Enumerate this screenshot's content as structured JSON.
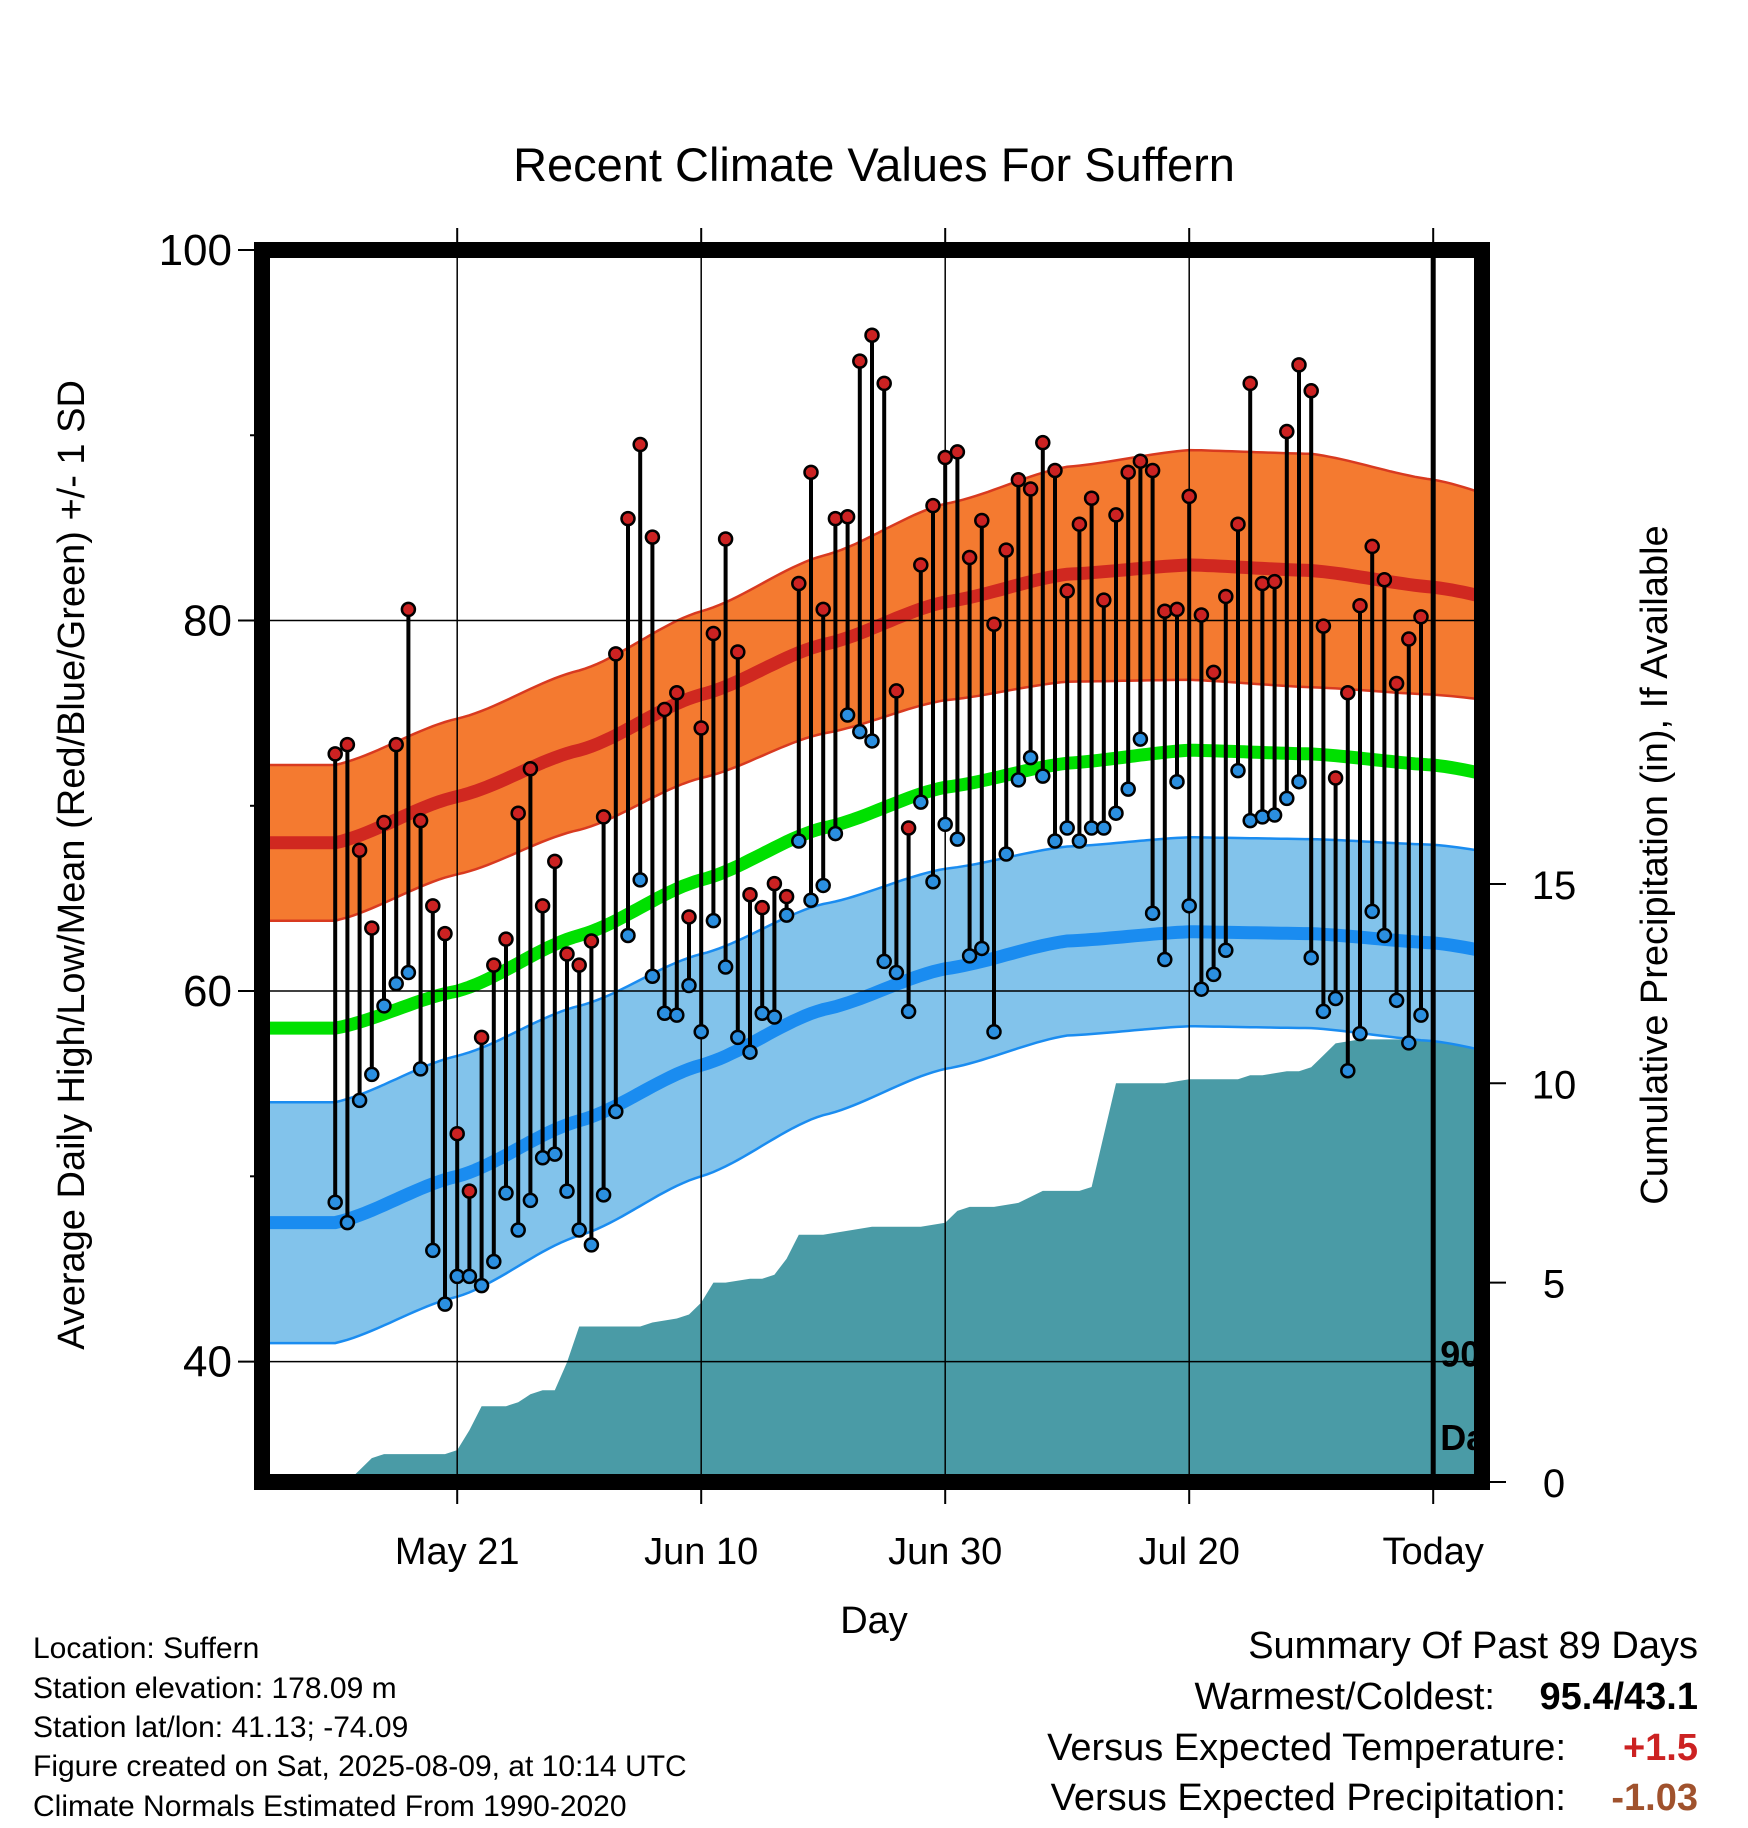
{
  "chart_data": {
    "type": "line",
    "title": "Recent Climate Values For Suffern",
    "xlabel": "Day",
    "ylabel_left": "Average Daily High/Low/Mean (Red/Blue/Green) +/- 1 SD",
    "ylabel_right": "Cumulative Precipitation (in), If Available",
    "xlim": [
      -16,
      84
    ],
    "ylim": [
      33.5,
      100
    ],
    "y2lim": [
      0,
      30.9
    ],
    "grid": true,
    "x_ticks": [
      {
        "x": 0,
        "label": "May 21"
      },
      {
        "x": 20,
        "label": "Jun 10"
      },
      {
        "x": 40,
        "label": "Jun 30"
      },
      {
        "x": 60,
        "label": "Jul 20"
      },
      {
        "x": 80,
        "label": "Today"
      }
    ],
    "y_ticks": [
      {
        "y": 40,
        "label": "40"
      },
      {
        "y": 60,
        "label": "60"
      },
      {
        "y": 80,
        "label": "80"
      },
      {
        "y": 100,
        "label": "100"
      }
    ],
    "y2_ticks": [
      {
        "y": 0,
        "label": "0"
      },
      {
        "y": 5,
        "label": "5"
      },
      {
        "y": 10,
        "label": "10"
      },
      {
        "y": 15,
        "label": "15"
      }
    ],
    "today_marker": {
      "x": 80,
      "label_line1": "90",
      "label_line2": "Days"
    },
    "colors": {
      "high_band": "#f47a30",
      "high_band_edge": "#d83a20",
      "normal_high": "#d02820",
      "normal_mean": "#00e000",
      "low_band": "#82c3eb",
      "low_band_edge": "#1a8cf0",
      "normal_low": "#1a8cf0",
      "precip": "#4a9ba6",
      "high_dot": "#cc2222",
      "low_dot": "#2b8fe0",
      "positive_anomaly": "#cc2222",
      "negative_anomaly": "#a0522d"
    },
    "normals": {
      "x": [
        -10,
        0,
        10,
        20,
        30,
        40,
        50,
        60,
        70,
        80,
        90
      ],
      "normal_high": [
        68,
        70.5,
        73,
        76,
        78.7,
        81,
        82.5,
        83,
        82.7,
        81.8,
        80.5
      ],
      "high_sd": [
        4.2,
        4.2,
        4.3,
        4.5,
        4.8,
        5.3,
        5.8,
        6.2,
        6.3,
        5.8,
        5.2
      ],
      "normal_mean": [
        58,
        60,
        63,
        66,
        68.8,
        71,
        72.3,
        73,
        72.8,
        72.2,
        71
      ],
      "normal_low": [
        47.5,
        50,
        53,
        56,
        59,
        61.2,
        62.7,
        63.2,
        63.1,
        62.6,
        61.5
      ],
      "low_sd": [
        6.5,
        6.5,
        6.2,
        6,
        5.7,
        5.4,
        5.1,
        5.1,
        5.1,
        5.3,
        5.5
      ]
    },
    "series": [
      {
        "name": "High",
        "x": [
          -10,
          -9,
          -8,
          -7,
          -6,
          -5,
          -4,
          -3,
          -2,
          -1,
          0,
          1,
          2,
          3,
          4,
          5,
          6,
          7,
          8,
          9,
          10,
          11,
          12,
          13,
          14,
          15,
          16,
          17,
          18,
          19,
          20,
          21,
          22,
          23,
          24,
          25,
          26,
          27,
          28,
          29,
          30,
          31,
          32,
          33,
          34,
          35,
          36,
          37,
          38,
          39,
          40,
          41,
          42,
          43,
          44,
          45,
          46,
          47,
          48,
          49,
          50,
          51,
          52,
          53,
          54,
          55,
          56,
          57,
          58,
          59,
          60,
          61,
          62,
          63,
          64,
          65,
          66,
          67,
          68,
          69,
          70,
          71,
          72,
          73,
          74,
          75,
          76,
          77,
          78,
          79
        ],
        "values": [
          72.8,
          73.3,
          67.6,
          63.4,
          69.1,
          73.3,
          80.6,
          69.2,
          64.6,
          63.1,
          52.3,
          49.2,
          57.5,
          61.4,
          62.8,
          69.6,
          72.0,
          64.6,
          67.0,
          62.0,
          61.4,
          62.7,
          69.4,
          78.2,
          85.5,
          89.5,
          84.5,
          75.2,
          76.1,
          64.0,
          74.2,
          79.3,
          84.4,
          78.3,
          65.2,
          64.5,
          65.8,
          65.1,
          82.0,
          88.0,
          80.6,
          85.5,
          85.6,
          94.0,
          95.4,
          92.8,
          76.2,
          68.8,
          83.0,
          86.2,
          88.8,
          89.1,
          83.4,
          85.4,
          79.8,
          83.8,
          87.6,
          87.1,
          89.6,
          88.1,
          81.6,
          85.2,
          86.6,
          81.1,
          85.7,
          88.0,
          88.6,
          88.1,
          80.5,
          80.6,
          86.7,
          80.3,
          77.2,
          81.3,
          85.2,
          92.8,
          82.0,
          82.1,
          90.2,
          93.8,
          92.4,
          79.7,
          71.5,
          76.1,
          80.8,
          84.0,
          82.2,
          76.6,
          79.0,
          80.2
        ]
      },
      {
        "name": "Low",
        "x": [
          -10,
          -9,
          -8,
          -7,
          -6,
          -5,
          -4,
          -3,
          -2,
          -1,
          0,
          1,
          2,
          3,
          4,
          5,
          6,
          7,
          8,
          9,
          10,
          11,
          12,
          13,
          14,
          15,
          16,
          17,
          18,
          19,
          20,
          21,
          22,
          23,
          24,
          25,
          26,
          27,
          28,
          29,
          30,
          31,
          32,
          33,
          34,
          35,
          36,
          37,
          38,
          39,
          40,
          41,
          42,
          43,
          44,
          45,
          46,
          47,
          48,
          49,
          50,
          51,
          52,
          53,
          54,
          55,
          56,
          57,
          58,
          59,
          60,
          61,
          62,
          63,
          64,
          65,
          66,
          67,
          68,
          69,
          70,
          71,
          72,
          73,
          74,
          75,
          76,
          77,
          78,
          79
        ],
        "values": [
          48.6,
          47.5,
          54.1,
          55.5,
          59.2,
          60.4,
          61.0,
          55.8,
          46.0,
          43.1,
          44.6,
          44.6,
          44.1,
          45.4,
          49.1,
          47.1,
          48.7,
          51.0,
          51.2,
          49.2,
          47.1,
          46.3,
          49.0,
          53.5,
          63.0,
          66.0,
          60.8,
          58.8,
          58.7,
          60.3,
          57.8,
          63.8,
          61.3,
          57.5,
          56.7,
          58.8,
          58.6,
          64.1,
          68.1,
          64.9,
          65.7,
          68.5,
          74.9,
          74.0,
          73.5,
          61.6,
          61.0,
          58.9,
          70.2,
          65.9,
          69.0,
          68.2,
          61.9,
          62.3,
          57.8,
          67.4,
          71.4,
          72.6,
          71.6,
          68.1,
          68.8,
          68.1,
          68.8,
          68.8,
          69.6,
          70.9,
          73.6,
          64.2,
          61.7,
          71.3,
          64.6,
          60.1,
          60.9,
          62.2,
          71.9,
          69.2,
          69.4,
          69.5,
          70.4,
          71.3,
          61.8,
          58.9,
          59.6,
          55.7,
          57.7,
          64.3,
          63.0,
          59.5,
          57.2,
          58.7
        ]
      }
    ],
    "precip": {
      "x": [
        -16,
        -9,
        -7,
        -6,
        -2,
        -1,
        0,
        1,
        2,
        4,
        5,
        6,
        7,
        8,
        9,
        10,
        11,
        12,
        14,
        15,
        16,
        18,
        19,
        20,
        21,
        22,
        24,
        25,
        26,
        27,
        28,
        29,
        30,
        32,
        34,
        36,
        38,
        40,
        41,
        42,
        44,
        46,
        48,
        50,
        51,
        52,
        54,
        56,
        58,
        60,
        62,
        64,
        65,
        66,
        68,
        69,
        70,
        71,
        72,
        74,
        76,
        78,
        80,
        84
      ],
      "values": [
        0,
        0,
        0.6,
        0.7,
        0.7,
        0.7,
        0.8,
        1.3,
        1.9,
        1.9,
        2.0,
        2.2,
        2.3,
        2.3,
        3.0,
        3.9,
        3.9,
        3.9,
        3.9,
        3.9,
        4.0,
        4.1,
        4.2,
        4.5,
        5.0,
        5.0,
        5.1,
        5.1,
        5.2,
        5.6,
        6.2,
        6.2,
        6.2,
        6.3,
        6.4,
        6.4,
        6.4,
        6.5,
        6.8,
        6.9,
        6.9,
        7.0,
        7.3,
        7.3,
        7.3,
        7.4,
        10.0,
        10.0,
        10.0,
        10.1,
        10.1,
        10.1,
        10.2,
        10.2,
        10.3,
        10.3,
        10.4,
        10.7,
        11.0,
        11.1,
        11.1,
        11.1,
        11.1,
        11.1
      ]
    }
  },
  "info": {
    "location": "Location: Suffern",
    "elevation": "Station elevation: 178.09 m",
    "latlon": "Station lat/lon: 41.13; -74.09",
    "created": "Figure created on Sat, 2025-08-09, at 10:14 UTC",
    "normals_source": "Climate Normals Estimated From 1990-2020"
  },
  "summary": {
    "title": "Summary Of Past 89 Days",
    "warmest_coldest_label": "Warmest/Coldest:",
    "warmest_coldest_value": "95.4/43.1",
    "temp_label": "Versus Expected Temperature:",
    "temp_value": "+1.5",
    "precip_label": "Versus Expected Precipitation:",
    "precip_value": "-1.03"
  }
}
